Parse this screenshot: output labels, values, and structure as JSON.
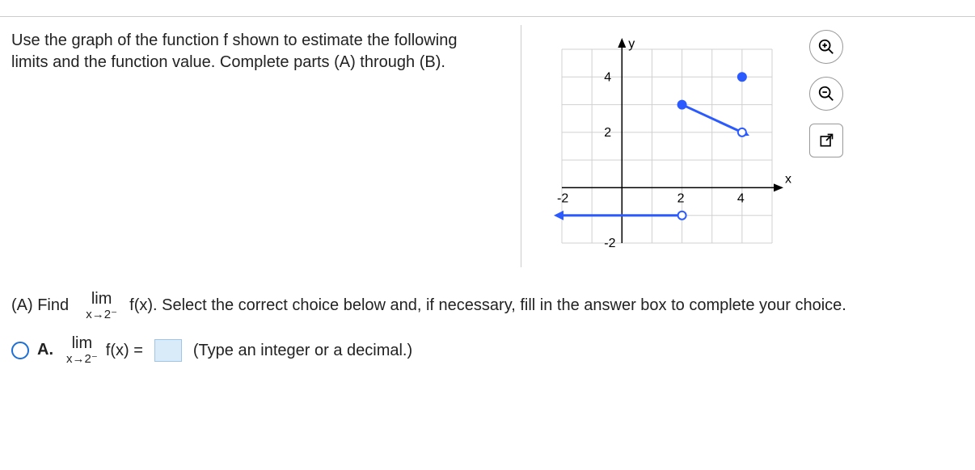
{
  "problem": {
    "prompt": "Use the graph of the function f shown to estimate the following limits and the function value. Complete parts (A) through (B)."
  },
  "graph": {
    "background": "#ffffff",
    "grid_color": "#d0d0d0",
    "axis_color": "#000000",
    "curve_color": "#2b5bff",
    "curve_width": 3,
    "x_label": "x",
    "y_label": "y",
    "xlim": [
      -2,
      5
    ],
    "ylim": [
      -2,
      5
    ],
    "xticks": [
      -2,
      2,
      4
    ],
    "yticks": [
      -2,
      2,
      4
    ],
    "segments": [
      {
        "type": "line",
        "from": [
          -2,
          -1
        ],
        "to": [
          2,
          -1
        ],
        "left_arrow": true
      },
      {
        "type": "line",
        "from": [
          2,
          3
        ],
        "to": [
          4,
          2
        ],
        "right_arrow": true
      }
    ],
    "points": [
      {
        "x": 2,
        "y": -1,
        "fill": "#ffffff",
        "stroke": "#2b5bff",
        "r": 5
      },
      {
        "x": 2,
        "y": 3,
        "fill": "#2b5bff",
        "stroke": "#2b5bff",
        "r": 5
      },
      {
        "x": 4,
        "y": 2,
        "fill": "#ffffff",
        "stroke": "#2b5bff",
        "r": 5
      },
      {
        "x": 4,
        "y": 4,
        "fill": "#2b5bff",
        "stroke": "#2b5bff",
        "r": 5
      }
    ]
  },
  "partA": {
    "intro_pre": "(A) Find",
    "lim_top": "lim",
    "lim_bot": "x→2⁻",
    "fx": "f(x).",
    "intro_post": "Select the correct choice below and, if necessary, fill in the answer box to complete your choice."
  },
  "choiceA": {
    "label": "A.",
    "lim_top": "lim",
    "lim_bot": "x→2⁻",
    "fx_eq": "f(x) =",
    "hint": "(Type an integer or a decimal.)"
  },
  "tools": {
    "zoom_in": "zoom-in",
    "zoom_out": "zoom-out",
    "popout": "popout"
  }
}
